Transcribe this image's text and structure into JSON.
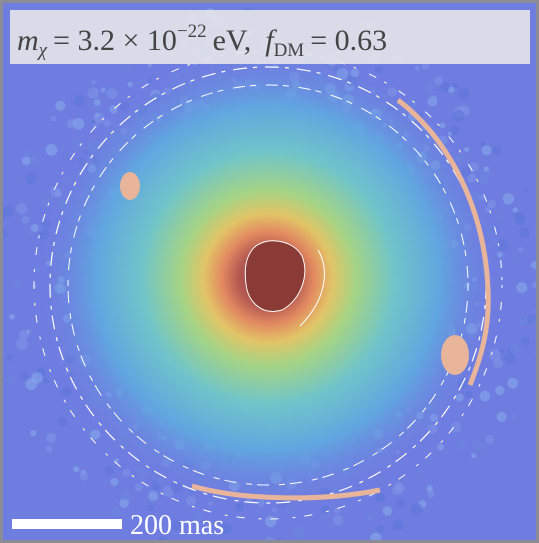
{
  "label": {
    "mass_symbol": "m",
    "mass_subscript": "χ",
    "mass_equation": "= 3.2 × 10",
    "mass_exponent": "−22",
    "mass_unit": "eV,",
    "fraction_symbol": "f",
    "fraction_subscript": "DM",
    "fraction_equation": "= 0.63"
  },
  "scale_bar": {
    "label": "200 mas"
  }
}
